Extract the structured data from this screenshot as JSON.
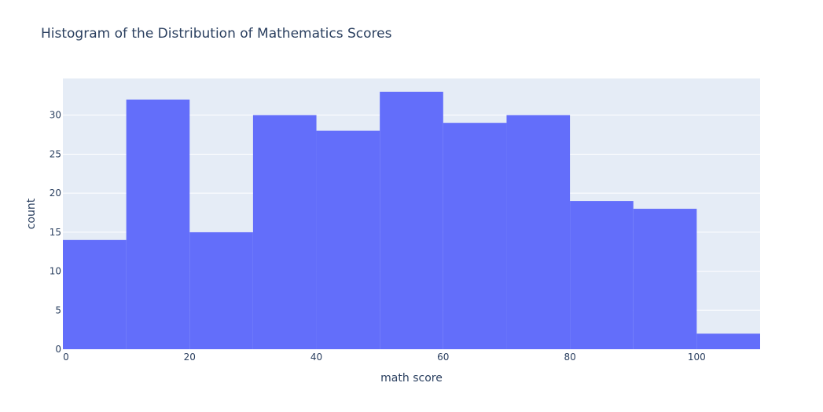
{
  "chart_data": {
    "type": "bar",
    "title": "Histogram of the Distribution of Mathematics Scores",
    "xlabel": "math score",
    "ylabel": "count",
    "bins": [
      {
        "start": 0,
        "end": 10,
        "count": 14
      },
      {
        "start": 10,
        "end": 20,
        "count": 32
      },
      {
        "start": 20,
        "end": 30,
        "count": 15
      },
      {
        "start": 30,
        "end": 40,
        "count": 30
      },
      {
        "start": 40,
        "end": 50,
        "count": 28
      },
      {
        "start": 50,
        "end": 60,
        "count": 33
      },
      {
        "start": 60,
        "end": 70,
        "count": 29
      },
      {
        "start": 70,
        "end": 80,
        "count": 30
      },
      {
        "start": 80,
        "end": 90,
        "count": 19
      },
      {
        "start": 90,
        "end": 100,
        "count": 18
      },
      {
        "start": 100,
        "end": 110,
        "count": 2
      }
    ],
    "xlim": [
      0,
      110
    ],
    "ylim": [
      0,
      34.7
    ],
    "xticks": [
      0,
      20,
      40,
      60,
      80,
      100
    ],
    "yticks": [
      0,
      5,
      10,
      15,
      20,
      25,
      30
    ],
    "grid": true,
    "colors": {
      "bar": "#636efa",
      "plot_bg": "#e5ecf6",
      "grid": "#ffffff",
      "text": "#2a3f5f"
    }
  }
}
